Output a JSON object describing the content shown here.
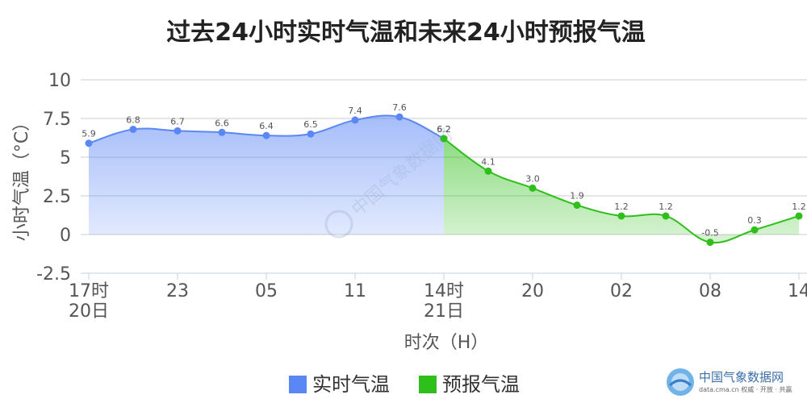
{
  "chart_data": {
    "type": "area",
    "title": "过去24小时实时气温和未来24小时预报气温",
    "xlabel": "时次（H）",
    "ylabel": "小时气温（°C）",
    "ylim": [
      -2.5,
      10
    ],
    "yticks": [
      "10",
      "7.5",
      "5",
      "2.5",
      "0",
      "-2.5"
    ],
    "ytick_values": [
      10,
      7.5,
      5,
      2.5,
      0,
      -2.5
    ],
    "xtick_labels": [
      {
        "index": 0,
        "line1": "17时",
        "line2": "20日"
      },
      {
        "index": 2,
        "line1": "23",
        "line2": ""
      },
      {
        "index": 4,
        "line1": "05",
        "line2": ""
      },
      {
        "index": 6,
        "line1": "11",
        "line2": ""
      },
      {
        "index": 8,
        "line1": "14时",
        "line2": "21日"
      },
      {
        "index": 10,
        "line1": "20",
        "line2": ""
      },
      {
        "index": 12,
        "line1": "02",
        "line2": ""
      },
      {
        "index": 14,
        "line1": "08",
        "line2": ""
      },
      {
        "index": 16,
        "line1": "14",
        "line2": ""
      }
    ],
    "series": [
      {
        "name": "实时气温",
        "color": "#5b87f5",
        "x": [
          0,
          1,
          2,
          3,
          4,
          5,
          6,
          7,
          8
        ],
        "values": [
          5.9,
          6.8,
          6.7,
          6.6,
          6.4,
          6.5,
          7.4,
          7.6,
          6.2
        ],
        "labels": [
          "5.9",
          "6.8",
          "6.7",
          "6.6",
          "6.4",
          "6.5",
          "7.4",
          "7.6",
          "6.2"
        ]
      },
      {
        "name": "预报气温",
        "color": "#2fbf1a",
        "x": [
          8,
          9,
          10,
          11,
          12,
          13,
          14,
          15,
          16
        ],
        "values": [
          6.2,
          4.1,
          3.0,
          1.9,
          1.2,
          1.2,
          -0.5,
          0.3,
          1.2
        ],
        "labels": [
          "6.2",
          "4.1",
          "3.0",
          "1.9",
          "1.2",
          "1.2",
          "-0.5",
          "0.3",
          "1.2"
        ]
      }
    ],
    "grid": true,
    "legend": "bottom-center"
  },
  "legend": {
    "items": [
      {
        "label": "实时气温",
        "color": "#5b87f5"
      },
      {
        "label": "预报气温",
        "color": "#2fbf1a"
      }
    ]
  },
  "branding": {
    "name": "中国气象数据网",
    "url": "data.cma.cn 权威 · 开放 · 共赢",
    "watermark": "中国气象数据网",
    "logo_icon": "cma-logo-icon"
  }
}
